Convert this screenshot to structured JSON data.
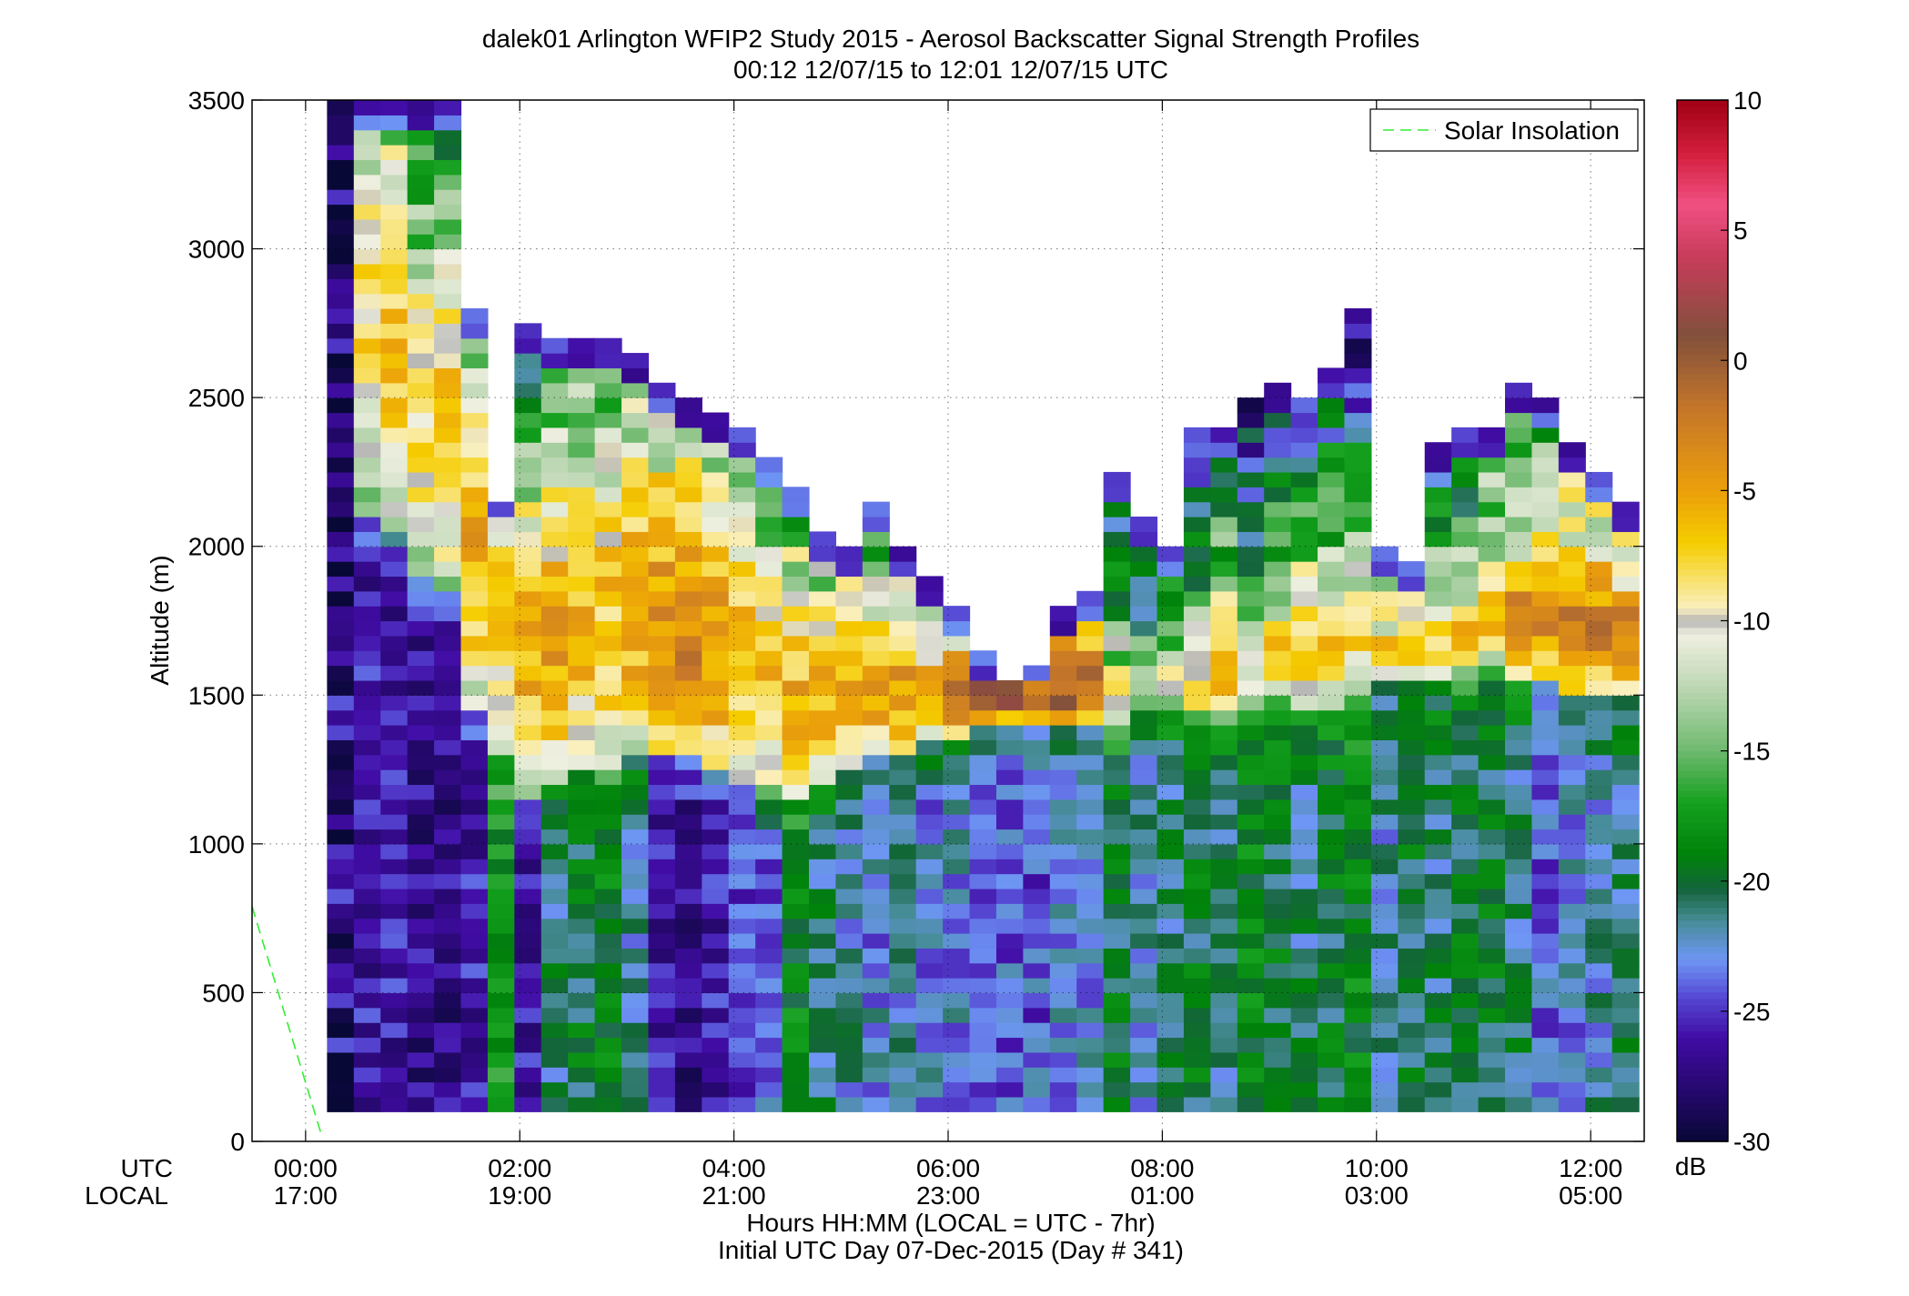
{
  "chart_data": {
    "type": "heatmap",
    "title": "dalek01 Arlington WFIP2 Study 2015 - Aerosol Backscatter Signal Strength Profiles",
    "subtitle": "00:12 12/07/15 to 12:01 12/07/15  UTC",
    "xlabel": "Hours HH:MM  (LOCAL = UTC - 7hr)",
    "xlabel2": "Initial UTC Day 07-Dec-2015 (Day # 341)",
    "ylabel": "Altitude (m)",
    "x_row_labels": [
      "UTC",
      "LOCAL"
    ],
    "xlim": [
      -0.5,
      12.5
    ],
    "ylim": [
      0,
      3500
    ],
    "x_ticks_utc": [
      "00:00",
      "02:00",
      "04:00",
      "06:00",
      "08:00",
      "10:00",
      "12:00"
    ],
    "x_ticks_local": [
      "17:00",
      "19:00",
      "21:00",
      "23:00",
      "01:00",
      "03:00",
      "05:00"
    ],
    "x_tick_values": [
      0,
      2,
      4,
      6,
      8,
      10,
      12
    ],
    "y_ticks": [
      "0",
      "500",
      "1000",
      "1500",
      "2000",
      "2500",
      "3000",
      "3500"
    ],
    "y_tick_values": [
      0,
      500,
      1000,
      1500,
      2000,
      2500,
      3000,
      3500
    ],
    "grid": true,
    "colorbar": {
      "label": "dB",
      "range": [
        -30,
        10
      ],
      "ticks": [
        "10",
        "5",
        "0",
        "-5",
        "-10",
        "-15",
        "-20",
        "-25",
        "-30"
      ],
      "tick_values": [
        10,
        5,
        0,
        -5,
        -10,
        -15,
        -20,
        -25,
        -30
      ]
    },
    "legend": {
      "position": "top-right",
      "entries": [
        "Solar Insolation"
      ]
    },
    "solar_insolation": {
      "x": [
        -0.5,
        0.15
      ],
      "y": [
        790,
        20
      ]
    },
    "profiles": {
      "time_start": 0.2,
      "time_step": 0.25,
      "height_start": 100,
      "height_step": 50,
      "tops": [
        3500,
        3500,
        3500,
        3500,
        3500,
        2800,
        2150,
        2750,
        2700,
        2700,
        2700,
        2650,
        2550,
        2500,
        2450,
        2400,
        2300,
        2200,
        2050,
        2000,
        2150,
        2000,
        1900,
        1800,
        1650,
        1550,
        1600,
        1800,
        1850,
        2250,
        2100,
        2000,
        2400,
        2400,
        2500,
        2550,
        2500,
        2600,
        2800,
        2000,
        1950,
        2350,
        2400,
        2400,
        2550,
        2500,
        2350,
        2250,
        2150
      ],
      "bottoms": [
        100,
        100,
        100,
        100,
        100,
        100,
        100,
        100,
        100,
        100,
        100,
        100,
        100,
        100,
        100,
        100,
        100,
        100,
        100,
        100,
        100,
        100,
        100,
        100,
        100,
        100,
        100,
        100,
        100,
        100,
        100,
        100,
        100,
        100,
        100,
        100,
        100,
        100,
        100,
        100,
        100,
        100,
        100,
        100,
        100,
        100,
        100,
        100,
        100
      ],
      "layer_base": [
        0,
        2100,
        2050,
        1900,
        1850,
        1450,
        1300,
        1150,
        1200,
        1250,
        1200,
        1300,
        1300,
        1300,
        1250,
        1200,
        1150,
        1150,
        1200,
        1250,
        1300,
        1300,
        1350,
        1350,
        1400,
        1400,
        1400,
        1400,
        1400,
        1400,
        1450,
        1450,
        1400,
        1400,
        1450,
        1450,
        1450,
        1450,
        1450,
        1550,
        1550,
        1550,
        1550,
        1600,
        1550,
        1550,
        1500,
        1500,
        1500
      ],
      "layer_top": [
        0,
        3400,
        3300,
        3000,
        3000,
        2500,
        2100,
        2050,
        2100,
        2250,
        2300,
        2250,
        2150,
        2050,
        2050,
        2050,
        1950,
        1850,
        1750,
        1700,
        1700,
        1650,
        1600,
        1600,
        1550,
        1550,
        1550,
        1550,
        1600,
        1600,
        1600,
        1600,
        1650,
        1700,
        1750,
        1800,
        1800,
        1850,
        1900,
        1700,
        1700,
        1750,
        1800,
        1900,
        1950,
        1950,
        1950,
        1900,
        1850
      ],
      "layer_peak_db": [
        -28,
        -8,
        -7,
        -8,
        -7,
        -6,
        -7,
        -6,
        -5,
        -6,
        -7,
        -5,
        -4,
        -3,
        -4,
        -6,
        -7,
        -6,
        -6,
        -5,
        -5,
        -4,
        -4,
        -2,
        1,
        0,
        -1,
        1,
        -1,
        -8,
        -11,
        -9,
        -8,
        -6,
        -9,
        -8,
        -6,
        -7,
        -8,
        -6,
        -6,
        -7,
        -7,
        -5,
        -4,
        -3,
        -3,
        -3,
        -3
      ],
      "boundary_layer_db": [
        -27,
        -26,
        -26,
        -27,
        -27,
        -26,
        -18,
        -26,
        -21,
        -20,
        -19,
        -22,
        -26,
        -27,
        -26,
        -25,
        -24,
        -19,
        -21,
        -22,
        -23,
        -22,
        -23,
        -23,
        -24,
        -24,
        -24,
        -23,
        -23,
        -20,
        -22,
        -21,
        -20,
        -21,
        -19,
        -20,
        -21,
        -20,
        -19,
        -22,
        -20,
        -21,
        -20,
        -20,
        -21,
        -24,
        -23,
        -22,
        -21
      ]
    }
  }
}
